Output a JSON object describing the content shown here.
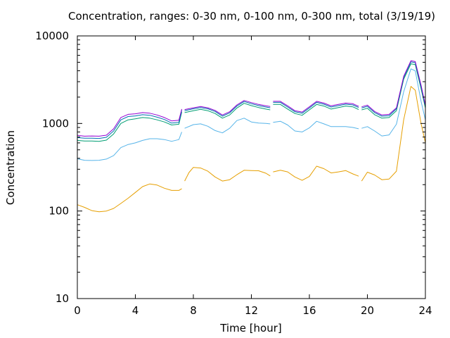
{
  "chart_data": {
    "type": "line",
    "title": "Concentration, ranges: 0-30 nm, 0-100 nm, 0-300 nm, total (3/19/19)",
    "xlabel": "Time [hour]",
    "ylabel": "Concentration",
    "xlim": [
      0,
      24
    ],
    "ylim": [
      10,
      10000
    ],
    "yscale": "log",
    "grid": false,
    "legend": "none",
    "xticks": [
      0,
      4,
      8,
      12,
      16,
      20,
      24
    ],
    "yticks": [
      10,
      100,
      1000,
      10000
    ],
    "yticklabels": [
      "10",
      "100",
      "1000",
      "10000"
    ],
    "series": [
      {
        "color": "#e69f00",
        "segments": [
          [
            [
              0,
              118
            ],
            [
              0.5,
              110
            ],
            [
              1,
              101
            ],
            [
              1.5,
              98
            ],
            [
              2,
              100
            ],
            [
              2.5,
              107
            ],
            [
              3,
              122
            ],
            [
              3.5,
              140
            ],
            [
              4,
              163
            ],
            [
              4.5,
              190
            ],
            [
              5,
              204
            ],
            [
              5.5,
              198
            ],
            [
              6,
              182
            ],
            [
              6.5,
              172
            ],
            [
              7,
              172
            ],
            [
              7.2,
              180
            ]
          ],
          [
            [
              7.4,
              220
            ],
            [
              7.7,
              275
            ],
            [
              8,
              315
            ],
            [
              8.5,
              310
            ],
            [
              9,
              285
            ],
            [
              9.5,
              245
            ],
            [
              10,
              220
            ],
            [
              10.5,
              228
            ],
            [
              11,
              260
            ],
            [
              11.5,
              292
            ],
            [
              12,
              290
            ],
            [
              12.5,
              288
            ],
            [
              13,
              270
            ],
            [
              13.3,
              252
            ]
          ],
          [
            [
              13.5,
              280
            ],
            [
              14,
              292
            ],
            [
              14.5,
              280
            ],
            [
              15,
              245
            ],
            [
              15.5,
              224
            ],
            [
              16,
              248
            ],
            [
              16.5,
              325
            ],
            [
              17,
              305
            ],
            [
              17.5,
              272
            ],
            [
              18,
              280
            ],
            [
              18.5,
              290
            ],
            [
              19,
              265
            ],
            [
              19.4,
              250
            ]
          ],
          [
            [
              19.6,
              220
            ],
            [
              20,
              278
            ],
            [
              20.5,
              258
            ],
            [
              21,
              228
            ],
            [
              21.5,
              232
            ],
            [
              22,
              285
            ],
            [
              22.5,
              1100
            ],
            [
              23,
              2650
            ],
            [
              23.3,
              2400
            ],
            [
              23.7,
              1000
            ],
            [
              24,
              600
            ]
          ]
        ]
      },
      {
        "color": "#56b4e9",
        "segments": [
          [
            [
              0,
              395
            ],
            [
              0.5,
              380
            ],
            [
              1,
              378
            ],
            [
              1.5,
              380
            ],
            [
              2,
              392
            ],
            [
              2.5,
              430
            ],
            [
              3,
              530
            ],
            [
              3.5,
              575
            ],
            [
              4,
              600
            ],
            [
              4.5,
              640
            ],
            [
              5,
              670
            ],
            [
              5.5,
              670
            ],
            [
              6,
              655
            ],
            [
              6.5,
              625
            ],
            [
              7,
              655
            ],
            [
              7.2,
              800
            ]
          ],
          [
            [
              7.4,
              880
            ],
            [
              8,
              970
            ],
            [
              8.5,
              990
            ],
            [
              9,
              930
            ],
            [
              9.5,
              830
            ],
            [
              10,
              780
            ],
            [
              10.5,
              880
            ],
            [
              11,
              1080
            ],
            [
              11.5,
              1150
            ],
            [
              12,
              1040
            ],
            [
              12.5,
              1010
            ],
            [
              13,
              1000
            ],
            [
              13.3,
              990
            ]
          ],
          [
            [
              13.5,
              1030
            ],
            [
              14,
              1060
            ],
            [
              14.5,
              960
            ],
            [
              15,
              820
            ],
            [
              15.5,
              800
            ],
            [
              16,
              890
            ],
            [
              16.5,
              1060
            ],
            [
              17,
              990
            ],
            [
              17.5,
              920
            ],
            [
              18,
              920
            ],
            [
              18.5,
              920
            ],
            [
              19,
              900
            ],
            [
              19.4,
              870
            ]
          ],
          [
            [
              19.6,
              880
            ],
            [
              20,
              920
            ],
            [
              20.5,
              820
            ],
            [
              21,
              720
            ],
            [
              21.5,
              740
            ],
            [
              22,
              980
            ],
            [
              22.5,
              2300
            ],
            [
              23,
              4200
            ],
            [
              23.3,
              4000
            ],
            [
              23.7,
              1800
            ],
            [
              24,
              1100
            ]
          ]
        ]
      },
      {
        "color": "#009e73",
        "segments": [
          [
            [
              0,
              640
            ],
            [
              0.5,
              630
            ],
            [
              1,
              630
            ],
            [
              1.5,
              625
            ],
            [
              2,
              645
            ],
            [
              2.5,
              760
            ],
            [
              3,
              1000
            ],
            [
              3.5,
              1100
            ],
            [
              4,
              1130
            ],
            [
              4.5,
              1170
            ],
            [
              5,
              1150
            ],
            [
              5.5,
              1100
            ],
            [
              6,
              1040
            ],
            [
              6.5,
              960
            ],
            [
              7,
              980
            ],
            [
              7.2,
              1350
            ]
          ],
          [
            [
              7.4,
              1330
            ],
            [
              8,
              1400
            ],
            [
              8.5,
              1450
            ],
            [
              9,
              1400
            ],
            [
              9.5,
              1300
            ],
            [
              10,
              1150
            ],
            [
              10.5,
              1250
            ],
            [
              11,
              1500
            ],
            [
              11.5,
              1700
            ],
            [
              12,
              1600
            ],
            [
              12.5,
              1520
            ],
            [
              13,
              1460
            ],
            [
              13.3,
              1430
            ]
          ],
          [
            [
              13.5,
              1650
            ],
            [
              14,
              1650
            ],
            [
              14.5,
              1460
            ],
            [
              15,
              1300
            ],
            [
              15.5,
              1240
            ],
            [
              16,
              1430
            ],
            [
              16.5,
              1650
            ],
            [
              17,
              1580
            ],
            [
              17.5,
              1460
            ],
            [
              18,
              1520
            ],
            [
              18.5,
              1580
            ],
            [
              19,
              1550
            ],
            [
              19.4,
              1440
            ]
          ],
          [
            [
              19.6,
              1430
            ],
            [
              20,
              1490
            ],
            [
              20.5,
              1260
            ],
            [
              21,
              1150
            ],
            [
              21.5,
              1170
            ],
            [
              22,
              1400
            ],
            [
              22.5,
              3200
            ],
            [
              23,
              4800
            ],
            [
              23.3,
              4700
            ],
            [
              23.7,
              2500
            ],
            [
              24,
              1500
            ]
          ]
        ]
      },
      {
        "color": "#0072b2",
        "segments": [
          [
            [
              0,
              690
            ],
            [
              0.5,
              680
            ],
            [
              1,
              680
            ],
            [
              1.5,
              675
            ],
            [
              2,
              695
            ],
            [
              2.5,
              820
            ],
            [
              3,
              1100
            ],
            [
              3.5,
              1200
            ],
            [
              4,
              1220
            ],
            [
              4.5,
              1260
            ],
            [
              5,
              1240
            ],
            [
              5.5,
              1180
            ],
            [
              6,
              1110
            ],
            [
              6.5,
              1010
            ],
            [
              7,
              1030
            ],
            [
              7.2,
              1420
            ]
          ],
          [
            [
              7.4,
              1400
            ],
            [
              8,
              1470
            ],
            [
              8.5,
              1520
            ],
            [
              9,
              1470
            ],
            [
              9.5,
              1370
            ],
            [
              10,
              1210
            ],
            [
              10.5,
              1320
            ],
            [
              11,
              1580
            ],
            [
              11.5,
              1780
            ],
            [
              12,
              1680
            ],
            [
              12.5,
              1600
            ],
            [
              13,
              1540
            ],
            [
              13.3,
              1510
            ]
          ],
          [
            [
              13.5,
              1740
            ],
            [
              14,
              1740
            ],
            [
              14.5,
              1540
            ],
            [
              15,
              1360
            ],
            [
              15.5,
              1310
            ],
            [
              16,
              1500
            ],
            [
              16.5,
              1740
            ],
            [
              17,
              1660
            ],
            [
              17.5,
              1540
            ],
            [
              18,
              1600
            ],
            [
              18.5,
              1660
            ],
            [
              19,
              1630
            ],
            [
              19.4,
              1520
            ]
          ],
          [
            [
              19.6,
              1500
            ],
            [
              20,
              1570
            ],
            [
              20.5,
              1330
            ],
            [
              21,
              1210
            ],
            [
              21.5,
              1230
            ],
            [
              22,
              1470
            ],
            [
              22.5,
              3350
            ],
            [
              23,
              5050
            ],
            [
              23.3,
              4950
            ],
            [
              23.7,
              2650
            ],
            [
              24,
              1580
            ]
          ]
        ]
      },
      {
        "color": "#9400d3",
        "segments": [
          [
            [
              0,
              730
            ],
            [
              0.5,
              715
            ],
            [
              1,
              720
            ],
            [
              1.5,
              715
            ],
            [
              2,
              735
            ],
            [
              2.5,
              870
            ],
            [
              3,
              1170
            ],
            [
              3.5,
              1270
            ],
            [
              4,
              1290
            ],
            [
              4.5,
              1330
            ],
            [
              5,
              1310
            ],
            [
              5.5,
              1250
            ],
            [
              6,
              1170
            ],
            [
              6.5,
              1070
            ],
            [
              7,
              1090
            ],
            [
              7.2,
              1460
            ]
          ],
          [
            [
              7.4,
              1440
            ],
            [
              8,
              1510
            ],
            [
              8.5,
              1560
            ],
            [
              9,
              1510
            ],
            [
              9.5,
              1410
            ],
            [
              10,
              1250
            ],
            [
              10.5,
              1360
            ],
            [
              11,
              1630
            ],
            [
              11.5,
              1830
            ],
            [
              12,
              1730
            ],
            [
              12.5,
              1650
            ],
            [
              13,
              1590
            ],
            [
              13.3,
              1560
            ]
          ],
          [
            [
              13.5,
              1790
            ],
            [
              14,
              1790
            ],
            [
              14.5,
              1590
            ],
            [
              15,
              1400
            ],
            [
              15.5,
              1350
            ],
            [
              16,
              1550
            ],
            [
              16.5,
              1790
            ],
            [
              17,
              1710
            ],
            [
              17.5,
              1590
            ],
            [
              18,
              1650
            ],
            [
              18.5,
              1710
            ],
            [
              19,
              1680
            ],
            [
              19.4,
              1570
            ]
          ],
          [
            [
              19.6,
              1550
            ],
            [
              20,
              1620
            ],
            [
              20.5,
              1370
            ],
            [
              21,
              1250
            ],
            [
              21.5,
              1270
            ],
            [
              22,
              1510
            ],
            [
              22.5,
              3450
            ],
            [
              23,
              5200
            ],
            [
              23.3,
              5100
            ],
            [
              23.7,
              2750
            ],
            [
              24,
              1620
            ]
          ]
        ]
      }
    ]
  }
}
